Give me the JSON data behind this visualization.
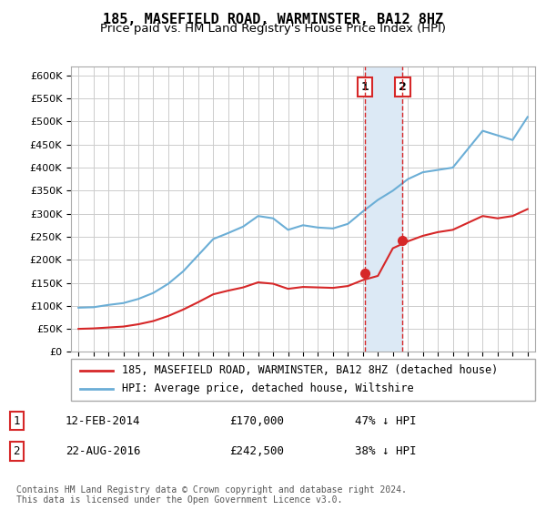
{
  "title": "185, MASEFIELD ROAD, WARMINSTER, BA12 8HZ",
  "subtitle": "Price paid vs. HM Land Registry's House Price Index (HPI)",
  "legend_line1": "185, MASEFIELD ROAD, WARMINSTER, BA12 8HZ (detached house)",
  "legend_line2": "HPI: Average price, detached house, Wiltshire",
  "transaction1_label": "1",
  "transaction1_date": "12-FEB-2014",
  "transaction1_price": 170000,
  "transaction1_pct": "47% ↓ HPI",
  "transaction2_label": "2",
  "transaction2_date": "22-AUG-2016",
  "transaction2_price": 242500,
  "transaction2_pct": "38% ↓ HPI",
  "footnote": "Contains HM Land Registry data © Crown copyright and database right 2024.\nThis data is licensed under the Open Government Licence v3.0.",
  "ylim": [
    0,
    620000
  ],
  "yticks": [
    0,
    50000,
    100000,
    150000,
    200000,
    250000,
    300000,
    350000,
    400000,
    450000,
    500000,
    550000,
    600000
  ],
  "hpi_color": "#6baed6",
  "price_color": "#d62728",
  "marker_color": "#d62728",
  "vline_color": "#d62728",
  "shade_color": "#dce9f5",
  "grid_color": "#cccccc",
  "bg_color": "#ffffff",
  "transaction1_x": 2014.12,
  "transaction2_x": 2016.65,
  "hpi_years": [
    1995,
    1996,
    1997,
    1998,
    1999,
    2000,
    2001,
    2002,
    2003,
    2004,
    2005,
    2006,
    2007,
    2008,
    2009,
    2010,
    2011,
    2012,
    2013,
    2014,
    2015,
    2016,
    2017,
    2018,
    2019,
    2020,
    2021,
    2022,
    2023,
    2024,
    2025
  ],
  "hpi_values": [
    96000,
    97000,
    102000,
    106000,
    115000,
    128000,
    148000,
    175000,
    210000,
    245000,
    258000,
    272000,
    295000,
    290000,
    265000,
    275000,
    270000,
    268000,
    278000,
    305000,
    330000,
    350000,
    375000,
    390000,
    395000,
    400000,
    440000,
    480000,
    470000,
    460000,
    510000
  ],
  "price_years": [
    1995,
    1996,
    1997,
    1998,
    1999,
    2000,
    2001,
    2002,
    2003,
    2004,
    2005,
    2006,
    2007,
    2008,
    2009,
    2010,
    2011,
    2012,
    2013,
    2014,
    2015,
    2016,
    2017,
    2018,
    2019,
    2020,
    2021,
    2022,
    2023,
    2024,
    2025
  ],
  "price_values": [
    50000,
    51000,
    53000,
    55000,
    60000,
    67000,
    78000,
    92000,
    108000,
    125000,
    133000,
    140000,
    151000,
    148000,
    137000,
    141000,
    140000,
    139000,
    143000,
    156000,
    165000,
    225000,
    240000,
    252000,
    260000,
    265000,
    280000,
    295000,
    290000,
    295000,
    310000
  ],
  "xlim_start": 1994.5,
  "xlim_end": 2025.5
}
